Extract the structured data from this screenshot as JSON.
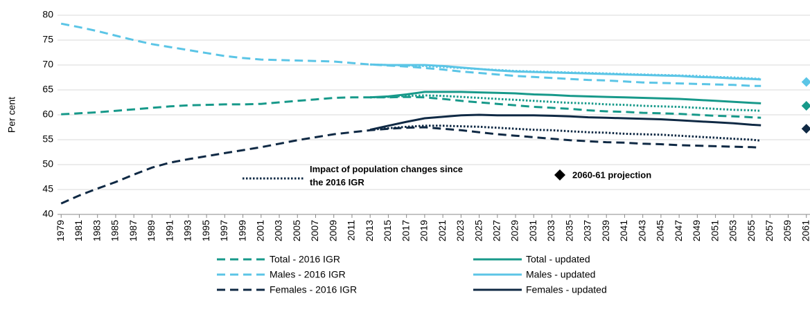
{
  "chart_data": {
    "type": "line",
    "y_label": "Per cent",
    "xlim": [
      1978.6,
      2061.4
    ],
    "ylim": [
      40,
      80
    ],
    "xticks": [
      1979,
      1981,
      1983,
      1985,
      1987,
      1989,
      1991,
      1993,
      1995,
      1997,
      1999,
      2001,
      2003,
      2005,
      2007,
      2009,
      2011,
      2013,
      2015,
      2017,
      2019,
      2021,
      2023,
      2025,
      2027,
      2029,
      2031,
      2033,
      2035,
      2037,
      2039,
      2041,
      2043,
      2045,
      2047,
      2049,
      2051,
      2053,
      2055,
      2057,
      2059,
      2061
    ],
    "yticks": [
      40,
      45,
      50,
      55,
      60,
      65,
      70,
      75,
      80
    ],
    "grid": true,
    "x": [
      1979,
      1981,
      1983,
      1985,
      1987,
      1989,
      1991,
      1993,
      1995,
      1997,
      1999,
      2001,
      2003,
      2005,
      2007,
      2009,
      2011,
      2013,
      2015,
      2017,
      2019,
      2021,
      2023,
      2025,
      2027,
      2029,
      2031,
      2033,
      2035,
      2037,
      2039,
      2041,
      2043,
      2045,
      2047,
      2049,
      2051,
      2053,
      2055,
      2056
    ],
    "series": [
      {
        "name": "Total - 2016 IGR",
        "color": "#17998a",
        "style": "dashed",
        "values": [
          60.1,
          60.3,
          60.5,
          60.8,
          61.1,
          61.4,
          61.7,
          61.9,
          62.0,
          62.1,
          62.1,
          62.2,
          62.5,
          62.8,
          63.1,
          63.4,
          63.5,
          63.5,
          63.5,
          63.6,
          63.5,
          63.2,
          62.8,
          62.5,
          62.2,
          61.9,
          61.6,
          61.4,
          61.2,
          60.9,
          60.7,
          60.6,
          60.4,
          60.3,
          60.2,
          60.0,
          59.8,
          59.7,
          59.5,
          59.4
        ]
      },
      {
        "name": "Males - 2016 IGR",
        "color": "#5bc5e6",
        "style": "dashed",
        "values": [
          78.3,
          77.6,
          76.8,
          75.9,
          75.0,
          74.2,
          73.6,
          73.0,
          72.4,
          71.8,
          71.4,
          71.1,
          71.0,
          70.9,
          70.8,
          70.7,
          70.4,
          70.1,
          69.9,
          69.7,
          69.4,
          69.1,
          68.7,
          68.4,
          68.1,
          67.8,
          67.6,
          67.4,
          67.2,
          67.0,
          66.9,
          66.7,
          66.5,
          66.4,
          66.3,
          66.2,
          66.1,
          66.0,
          65.8,
          65.8
        ]
      },
      {
        "name": "Females - 2016 IGR",
        "color": "#0f2944",
        "style": "dashed",
        "values": [
          42.2,
          43.8,
          45.2,
          46.5,
          48.0,
          49.4,
          50.4,
          51.1,
          51.7,
          52.3,
          52.9,
          53.5,
          54.2,
          54.9,
          55.5,
          56.1,
          56.5,
          56.9,
          57.2,
          57.4,
          57.5,
          57.2,
          56.9,
          56.5,
          56.1,
          55.8,
          55.5,
          55.2,
          54.9,
          54.7,
          54.5,
          54.4,
          54.2,
          54.1,
          53.9,
          53.8,
          53.7,
          53.6,
          53.5,
          53.4
        ]
      },
      {
        "name": "Total - updated",
        "color": "#17998a",
        "style": "solid",
        "values": [
          null,
          null,
          null,
          null,
          null,
          null,
          null,
          null,
          null,
          null,
          null,
          null,
          null,
          null,
          null,
          null,
          null,
          63.5,
          63.7,
          64.1,
          64.6,
          64.6,
          64.6,
          64.5,
          64.4,
          64.3,
          64.1,
          64.0,
          63.8,
          63.7,
          63.6,
          63.5,
          63.4,
          63.3,
          63.2,
          63.0,
          62.8,
          62.6,
          62.4,
          62.3
        ]
      },
      {
        "name": "Males - updated",
        "color": "#5bc5e6",
        "style": "solid",
        "values": [
          null,
          null,
          null,
          null,
          null,
          null,
          null,
          null,
          null,
          null,
          null,
          null,
          null,
          null,
          null,
          null,
          null,
          70.1,
          70.0,
          70.0,
          70.0,
          69.8,
          69.5,
          69.2,
          68.9,
          68.7,
          68.6,
          68.5,
          68.4,
          68.3,
          68.2,
          68.1,
          68.0,
          67.9,
          67.8,
          67.6,
          67.5,
          67.3,
          67.2,
          67.1
        ]
      },
      {
        "name": "Females - updated",
        "color": "#0f2944",
        "style": "solid",
        "values": [
          null,
          null,
          null,
          null,
          null,
          null,
          null,
          null,
          null,
          null,
          null,
          null,
          null,
          null,
          null,
          null,
          null,
          57.0,
          57.8,
          58.6,
          59.3,
          59.6,
          59.9,
          60.0,
          59.9,
          59.9,
          59.9,
          59.8,
          59.7,
          59.5,
          59.4,
          59.3,
          59.2,
          59.1,
          58.9,
          58.7,
          58.5,
          58.3,
          58.0,
          57.9
        ]
      },
      {
        "name": "Impact of population changes since the 2016 IGR",
        "color": "#17998a",
        "style": "dotted",
        "values": [
          null,
          null,
          null,
          null,
          null,
          null,
          null,
          null,
          null,
          null,
          null,
          null,
          null,
          null,
          null,
          null,
          null,
          63.5,
          63.6,
          63.8,
          63.9,
          63.8,
          63.6,
          63.4,
          63.2,
          63.0,
          62.8,
          62.6,
          62.4,
          62.3,
          62.1,
          62.0,
          61.8,
          61.7,
          61.6,
          61.4,
          61.2,
          61.0,
          60.9,
          60.8
        ]
      },
      {
        "color": "#5bc5e6",
        "style": "dotted",
        "values": [
          null,
          null,
          null,
          null,
          null,
          null,
          null,
          null,
          null,
          null,
          null,
          null,
          null,
          null,
          null,
          null,
          null,
          70.1,
          70.0,
          69.9,
          69.8,
          69.6,
          69.4,
          69.2,
          69.0,
          68.8,
          68.7,
          68.6,
          68.5,
          68.4,
          68.3,
          68.2,
          68.1,
          68.0,
          67.9,
          67.8,
          67.6,
          67.5,
          67.3,
          67.2
        ]
      },
      {
        "color": "#0f2944",
        "style": "dotted",
        "values": [
          null,
          null,
          null,
          null,
          null,
          null,
          null,
          null,
          null,
          null,
          null,
          null,
          null,
          null,
          null,
          null,
          null,
          57.0,
          57.3,
          57.6,
          57.8,
          57.8,
          57.7,
          57.6,
          57.4,
          57.2,
          57.0,
          56.9,
          56.7,
          56.5,
          56.4,
          56.2,
          56.1,
          56.0,
          55.8,
          55.6,
          55.4,
          55.2,
          55.0,
          54.8
        ]
      }
    ],
    "projection": {
      "name": "2060-61 projection",
      "x": 2061,
      "values": [
        66.6,
        61.8,
        57.2
      ],
      "colors": [
        "#5bc5e6",
        "#17998a",
        "#0f2944"
      ],
      "legend_color": "#000000"
    }
  }
}
